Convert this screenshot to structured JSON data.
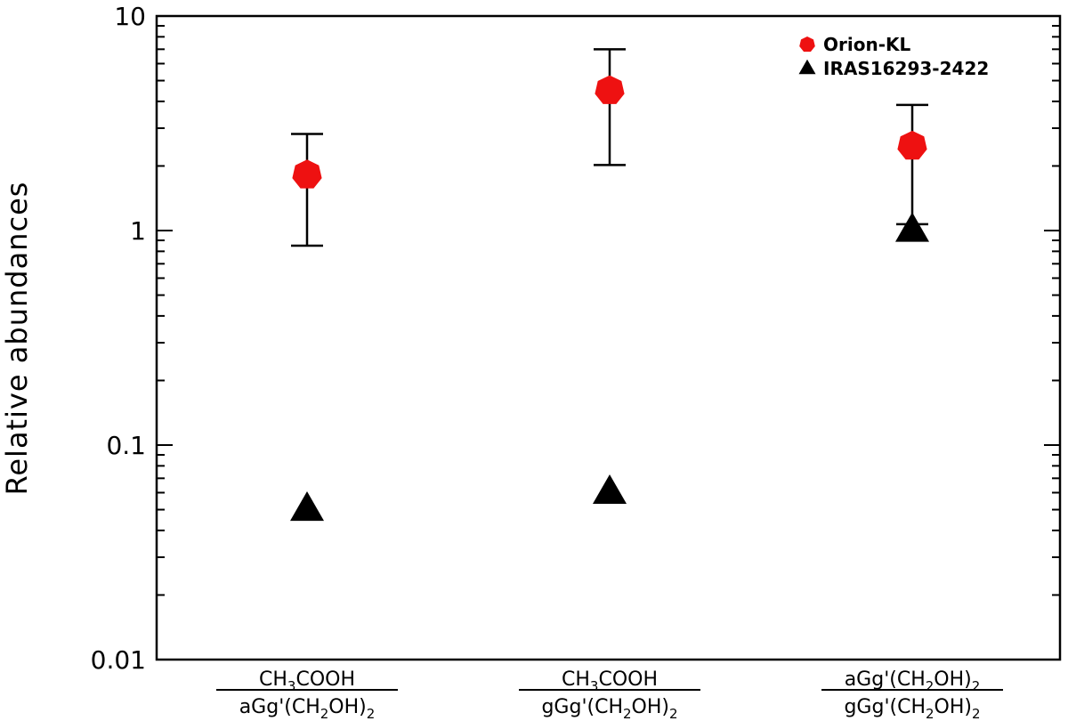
{
  "chart_data": {
    "type": "scatter",
    "title": "",
    "xlabel": "",
    "ylabel": "Relative abundances",
    "yscale": "log",
    "ylim": [
      0.01,
      10
    ],
    "yticks": [
      {
        "value": 0.01,
        "label": "0.01"
      },
      {
        "value": 0.1,
        "label": "0.1"
      },
      {
        "value": 1,
        "label": "1"
      },
      {
        "value": 10,
        "label": "10"
      }
    ],
    "categories": [
      {
        "numerator": [
          "CH",
          "3",
          "COOH"
        ],
        "denominator": [
          "aGg'(CH",
          "2",
          "OH)",
          "2"
        ]
      },
      {
        "numerator": [
          "CH",
          "3",
          "COOH"
        ],
        "denominator": [
          "gGg'(CH",
          "2",
          "OH)",
          "2"
        ]
      },
      {
        "numerator": [
          "aGg'(CH",
          "2",
          "OH)",
          "2"
        ],
        "denominator": [
          "gGg'(CH",
          "2",
          "OH)",
          "2"
        ]
      }
    ],
    "series": [
      {
        "name": "Orion-KL",
        "marker": "heptagon",
        "color": "#ee1111",
        "values": [
          1.82,
          4.5,
          2.48
        ],
        "errors_low": [
          0.85,
          2.02,
          1.07
        ],
        "errors_high": [
          2.82,
          7.0,
          3.85
        ]
      },
      {
        "name": "IRAS16293-2422",
        "marker": "triangle",
        "color": "#000000",
        "values": [
          0.05,
          0.06,
          1.0
        ]
      }
    ],
    "legend_position": "top-right",
    "grid": false
  }
}
